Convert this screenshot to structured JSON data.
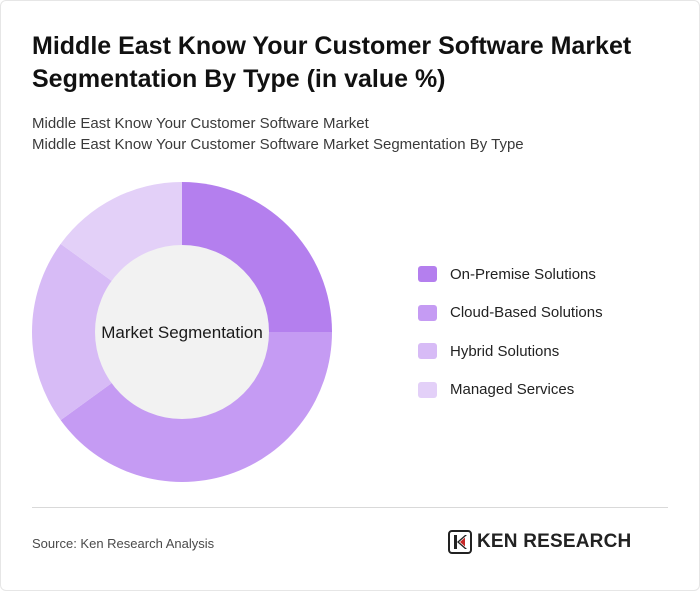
{
  "title": "Middle East Know Your Customer Software Market Segmentation By Type (in value %)",
  "subtitle_line1": "Middle East Know Your Customer Software Market",
  "subtitle_line2": "Middle East Know Your Customer Software Market Segmentation By Type",
  "source": "Source: Ken Research Analysis",
  "logo_text": "KEN RESEARCH",
  "chart_data": {
    "type": "pie",
    "variant": "donut",
    "center_label": "Market Segmentation",
    "legend_position": "right",
    "categories": [
      "On-Premise Solutions",
      "Cloud-Based Solutions",
      "Hybrid Solutions",
      "Managed Services"
    ],
    "values": [
      25,
      40,
      20,
      15
    ],
    "colors": [
      "#b47fee",
      "#c59bf3",
      "#d7bbf6",
      "#e3d0f8"
    ]
  }
}
